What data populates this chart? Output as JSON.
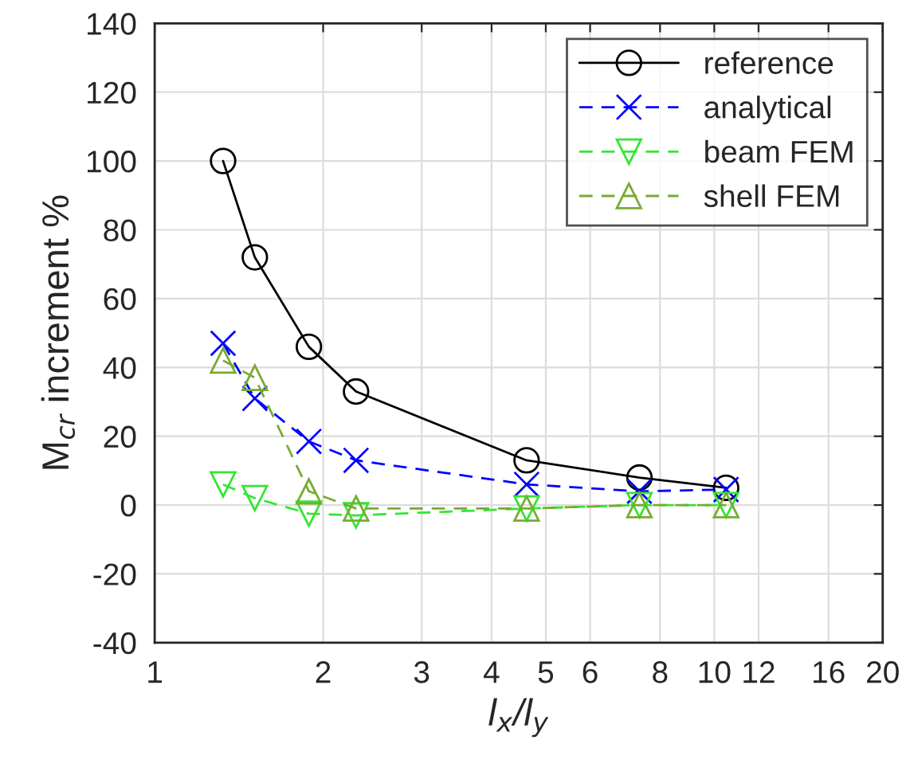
{
  "chart_data": {
    "type": "line",
    "xlabel": "l$_{x}$/l$_{y}$",
    "ylabel": "M$_{cr}$ increment %",
    "x": [
      1.325,
      1.51,
      1.886,
      2.29,
      4.62,
      7.35,
      10.5
    ],
    "series": [
      {
        "name": "reference",
        "color": "#000000",
        "marker": "circle",
        "line_style": "solid",
        "values": [
          100,
          72,
          46,
          33,
          13,
          8,
          5
        ]
      },
      {
        "name": "analytical",
        "color": "#0000ff",
        "marker": "cross",
        "line_style": "dashed",
        "values": [
          47,
          31,
          18.5,
          13,
          6,
          4,
          4.5
        ]
      },
      {
        "name": "beam FEM",
        "color": "#33e633",
        "marker": "triangle_down",
        "line_style": "dashed",
        "values": [
          6,
          2,
          -2.5,
          -3,
          -1,
          0,
          0
        ]
      },
      {
        "name": "shell FEM",
        "color": "#77ac30",
        "marker": "triangle",
        "line_style": "dashed",
        "values": [
          42,
          37,
          4,
          -1,
          -1,
          0,
          0
        ]
      }
    ],
    "log": "x",
    "xlim": [
      1,
      20
    ],
    "xticks": [
      1,
      2,
      3,
      4,
      5,
      6,
      8,
      10,
      12,
      16,
      20
    ],
    "ylim": [
      -40,
      140
    ],
    "yticks": [
      -40,
      -20,
      0,
      20,
      40,
      60,
      80,
      100,
      120,
      140
    ],
    "grid": true,
    "legend": "top right"
  }
}
